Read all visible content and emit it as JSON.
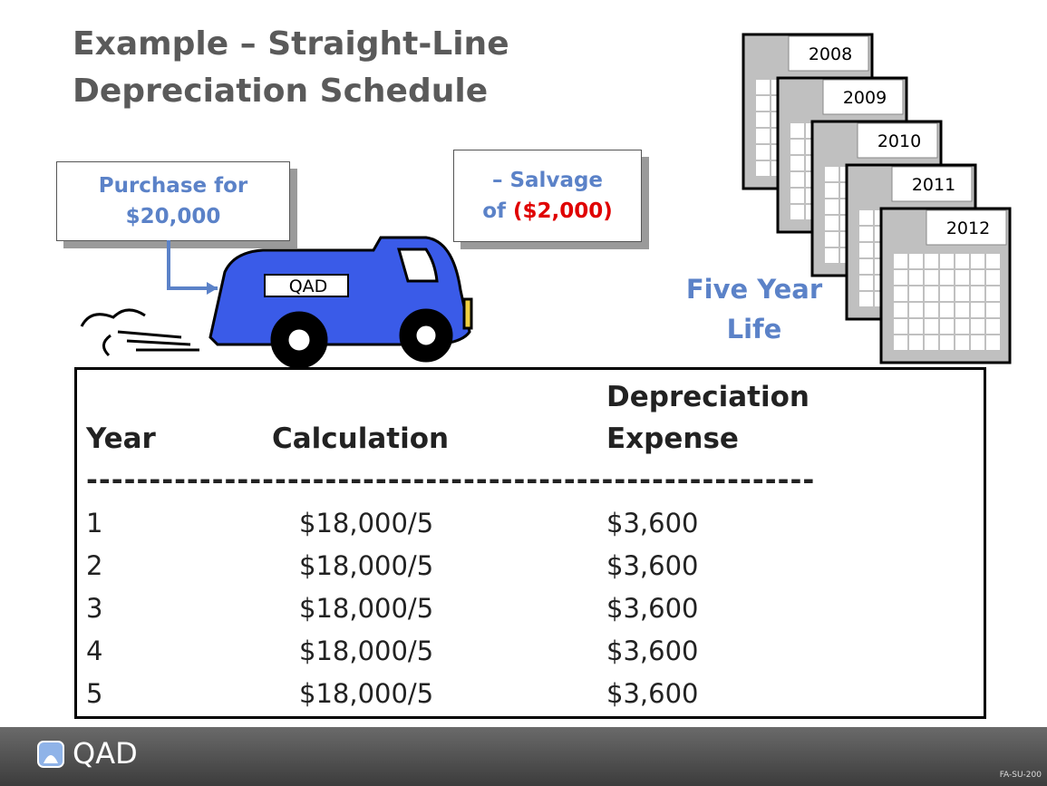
{
  "title": [
    "Example – Straight-Line",
    "Depreciation Schedule"
  ],
  "purchase": [
    "Purchase for",
    "$20,000"
  ],
  "salvage": {
    "line1": "– Salvage",
    "prefix": "of",
    "amount": "($2,000)"
  },
  "truck_logo": "QAD",
  "calendars": [
    "2008",
    "2009",
    "2010",
    "2011",
    "2012"
  ],
  "life": [
    "Five Year",
    "Life"
  ],
  "table": {
    "header": {
      "year": "Year",
      "calculation": "Calculation",
      "expense": [
        "Depreciation",
        "Expense"
      ]
    },
    "divider": "----------------------------------------------------------",
    "rows": [
      [
        "1",
        "$18,000/5",
        "$3,600"
      ],
      [
        "2",
        "$18,000/5",
        "$3,600"
      ],
      [
        "3",
        "$18,000/5",
        "$3,600"
      ],
      [
        "4",
        "$18,000/5",
        "$3,600"
      ],
      [
        "5",
        "$18,000/5",
        "$3,600"
      ]
    ]
  },
  "footer": {
    "logo": "QAD",
    "code": "FA-SU-200"
  }
}
